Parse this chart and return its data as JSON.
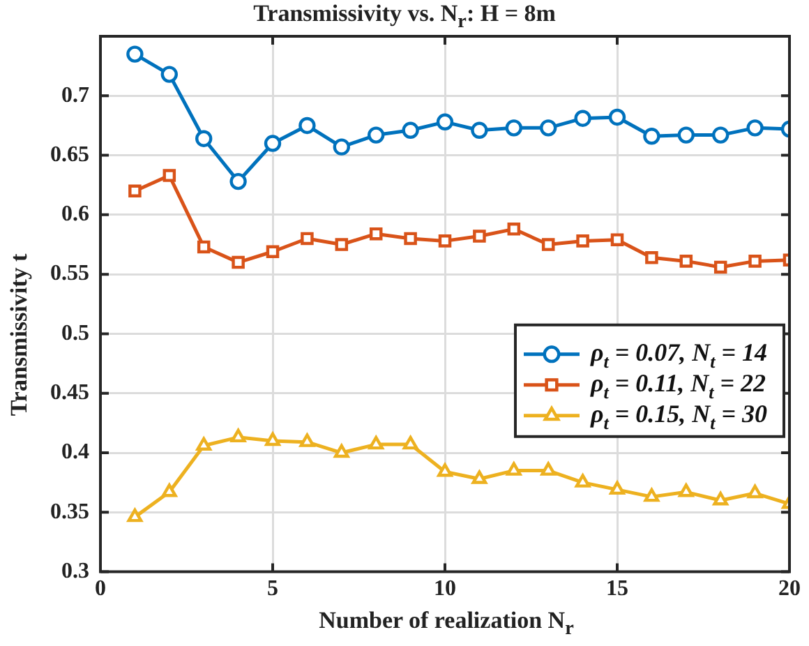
{
  "chart_data": {
    "type": "line",
    "title": "Transmissivity vs. N$_{r}$: H = 8m",
    "xlabel": "Number of realization N$_{r}$",
    "ylabel": "Transmissivity t",
    "x": [
      1,
      2,
      3,
      4,
      5,
      6,
      7,
      8,
      9,
      10,
      11,
      12,
      13,
      14,
      15,
      16,
      17,
      18,
      19,
      20
    ],
    "xlim": [
      0,
      20
    ],
    "xticks": [
      0,
      5,
      10,
      15,
      20
    ],
    "ylim": [
      0.3,
      0.75
    ],
    "yticks": [
      0.3,
      0.35,
      0.4,
      0.45,
      0.5,
      0.55,
      0.6,
      0.65,
      0.7
    ],
    "grid": true,
    "legend": "right",
    "line_style": "solid",
    "series": [
      {
        "name": "ρ$_{t}$ = 0.07, N$_{t}$ = 14",
        "color": "#0072bd",
        "marker": "circle",
        "values": [
          0.735,
          0.718,
          0.664,
          0.628,
          0.66,
          0.675,
          0.657,
          0.667,
          0.671,
          0.678,
          0.671,
          0.673,
          0.673,
          0.681,
          0.682,
          0.666,
          0.667,
          0.667,
          0.673,
          0.672
        ]
      },
      {
        "name": "ρ$_{t}$ = 0.11, N$_{t}$ = 22",
        "color": "#d95319",
        "marker": "square",
        "values": [
          0.62,
          0.633,
          0.573,
          0.56,
          0.569,
          0.58,
          0.575,
          0.584,
          0.58,
          0.578,
          0.582,
          0.588,
          0.575,
          0.578,
          0.579,
          0.564,
          0.561,
          0.556,
          0.561,
          0.562
        ]
      },
      {
        "name": "ρ$_{t}$ = 0.15, N$_{t}$ = 30",
        "color": "#edb120",
        "marker": "triangle",
        "values": [
          0.346,
          0.367,
          0.406,
          0.413,
          0.41,
          0.409,
          0.4,
          0.407,
          0.407,
          0.384,
          0.378,
          0.385,
          0.385,
          0.375,
          0.369,
          0.363,
          0.367,
          0.36,
          0.366,
          0.357
        ]
      }
    ]
  }
}
